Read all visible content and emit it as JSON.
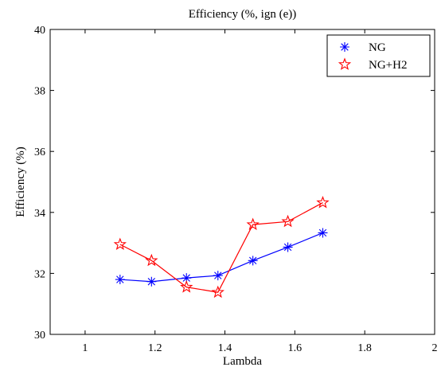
{
  "chart_data": {
    "type": "line",
    "title": "Efficiency (%, ign (e))",
    "xlabel": "Lambda",
    "ylabel": "Efficiency (%)",
    "xlim": [
      0.9,
      2.0
    ],
    "ylim": [
      30,
      40
    ],
    "xticks": [
      1,
      1.2,
      1.4,
      1.6,
      1.8,
      2
    ],
    "xtick_labels": [
      "1",
      "1.2",
      "1.4",
      "1.6",
      "1.8",
      "2"
    ],
    "yticks": [
      30,
      32,
      34,
      36,
      38,
      40
    ],
    "ytick_labels": [
      "30",
      "32",
      "34",
      "36",
      "38",
      "40"
    ],
    "grid": false,
    "legend_position": "top-right",
    "series": [
      {
        "name": "NG",
        "color": "#0000ff",
        "marker": "asterisk",
        "x": [
          1.1,
          1.19,
          1.29,
          1.38,
          1.48,
          1.58,
          1.68
        ],
        "y": [
          31.8,
          31.73,
          31.85,
          31.93,
          32.42,
          32.86,
          33.33
        ]
      },
      {
        "name": "NG+H2",
        "color": "#ff0000",
        "marker": "star",
        "x": [
          1.1,
          1.19,
          1.29,
          1.38,
          1.48,
          1.58,
          1.68
        ],
        "y": [
          32.95,
          32.42,
          31.55,
          31.38,
          33.6,
          33.7,
          34.32
        ]
      }
    ]
  }
}
